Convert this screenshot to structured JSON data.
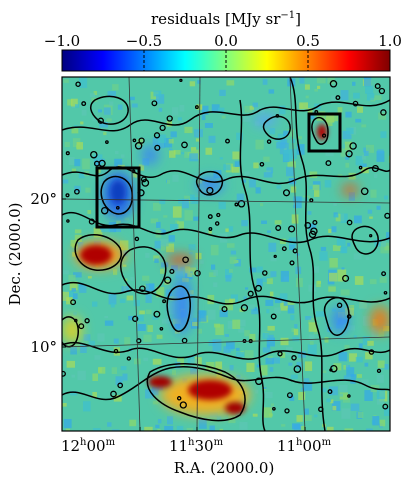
{
  "chart_data": {
    "type": "heatmap",
    "colorbar": {
      "label": "residuals [MJy sr",
      "label_sup": "−1",
      "label_close": "]",
      "range": [
        -1.0,
        1.0
      ],
      "ticks": [
        {
          "value": -1.0,
          "label": "−1.0"
        },
        {
          "value": -0.5,
          "label": "−0.5"
        },
        {
          "value": 0.0,
          "label": "0.0"
        },
        {
          "value": 0.5,
          "label": "0.5"
        },
        {
          "value": 1.0,
          "label": "1.0"
        }
      ],
      "colormap": "jet",
      "colors": [
        "#00007f",
        "#0000ff",
        "#007fff",
        "#00ffff",
        "#7fff7f",
        "#ffff00",
        "#ff7f00",
        "#ff0000",
        "#7f0000"
      ]
    },
    "map_background_color": "#52c8a9",
    "contour_color": "#000000",
    "xlabel": "R.A. (2000.0)",
    "ylabel": "Dec. (2000.0)",
    "xticks": [
      {
        "value": "12h00m",
        "h": "12",
        "m": "00"
      },
      {
        "value": "11h30m",
        "h": "11",
        "m": "30"
      },
      {
        "value": "11h00m",
        "h": "11",
        "m": "00"
      }
    ],
    "yticks": [
      {
        "value": 20,
        "label": "20°"
      },
      {
        "value": 10,
        "label": "10°"
      }
    ],
    "features": [
      {
        "name": "boxed-negative-region-left",
        "residual": -0.8
      },
      {
        "name": "boxed-positive-region-right",
        "residual": 1.0
      },
      {
        "name": "positive-patch-left",
        "residual": 1.0
      },
      {
        "name": "positive-patch-bottom",
        "residual": 1.0
      },
      {
        "name": "negative-stripe-center",
        "residual": -0.6
      }
    ]
  }
}
